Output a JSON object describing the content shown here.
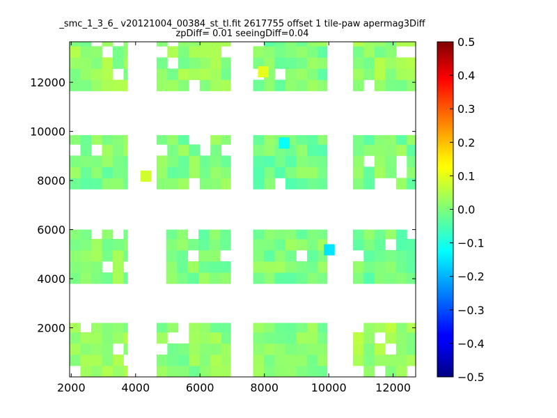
{
  "chart_data": {
    "type": "heatmap",
    "title_lines": [
      "_smc_1_3_6_ v20121004_00384_st_tl.fit 2617755 offset 1 tile-paw apermag3Diff",
      "zpDiff= 0.01 seeingDiff=0.04"
    ],
    "xlabel": "",
    "ylabel": "",
    "xlim": [
      1950,
      12700
    ],
    "ylim": [
      0,
      13650
    ],
    "x_ticks": [
      2000,
      4000,
      6000,
      8000,
      10000,
      12000
    ],
    "y_ticks": [
      2000,
      4000,
      6000,
      8000,
      10000,
      12000
    ],
    "grid": false,
    "cell_size": [
      335,
      455
    ],
    "colorbar": {
      "colormap": "jet",
      "vmin": -0.5,
      "vmax": 0.5,
      "ticks": [
        0.5,
        0.4,
        0.3,
        0.2,
        0.1,
        0.0,
        -0.1,
        -0.2,
        -0.3,
        -0.4,
        -0.5
      ],
      "tick_labels": [
        "0.5",
        "0.4",
        "0.3",
        "0.2",
        "0.1",
        "0.0",
        "−0.1",
        "−0.2",
        "−0.3",
        "−0.4",
        "−0.5"
      ]
    },
    "blocks": [
      {
        "x": [
          1950,
          3750
        ],
        "y": [
          0,
          2200
        ],
        "value": 0.02
      },
      {
        "x": [
          1950,
          3750
        ],
        "y": [
          3800,
          6000
        ],
        "value": 0.01
      },
      {
        "x": [
          1950,
          3750
        ],
        "y": [
          7650,
          9850
        ],
        "value": 0.0
      },
      {
        "x": [
          1950,
          3750
        ],
        "y": [
          11650,
          13650
        ],
        "value": 0.02
      },
      {
        "x": [
          4650,
          6950
        ],
        "y": [
          0,
          2200
        ],
        "value": 0.01
      },
      {
        "x": [
          4950,
          6950
        ],
        "y": [
          3800,
          6000
        ],
        "value": 0.0
      },
      {
        "x": [
          4650,
          6950
        ],
        "y": [
          7650,
          9850
        ],
        "value": 0.0
      },
      {
        "x": [
          4650,
          6950
        ],
        "y": [
          11650,
          13650
        ],
        "value": 0.02
      },
      {
        "x": [
          7650,
          9950
        ],
        "y": [
          0,
          2200
        ],
        "value": 0.01
      },
      {
        "x": [
          7650,
          9950
        ],
        "y": [
          3800,
          6000
        ],
        "value": 0.0
      },
      {
        "x": [
          7650,
          9950
        ],
        "y": [
          7650,
          9850
        ],
        "value": -0.01
      },
      {
        "x": [
          7650,
          9950
        ],
        "y": [
          11650,
          13650
        ],
        "value": 0.0
      },
      {
        "x": [
          10750,
          12700
        ],
        "y": [
          0,
          2200
        ],
        "value": 0.03
      },
      {
        "x": [
          10750,
          12700
        ],
        "y": [
          3800,
          6000
        ],
        "value": -0.01
      },
      {
        "x": [
          10750,
          12700
        ],
        "y": [
          7650,
          9850
        ],
        "value": 0.0
      },
      {
        "x": [
          10750,
          12700
        ],
        "y": [
          11650,
          13650
        ],
        "value": 0.02
      }
    ],
    "notable_cells": [
      {
        "x": 7800,
        "y": 12200,
        "value": 0.1
      },
      {
        "x": 8450,
        "y": 9300,
        "value": -0.12
      },
      {
        "x": 9850,
        "y": 4950,
        "value": -0.15
      },
      {
        "x": 4150,
        "y": 7950,
        "value": 0.08
      }
    ]
  }
}
